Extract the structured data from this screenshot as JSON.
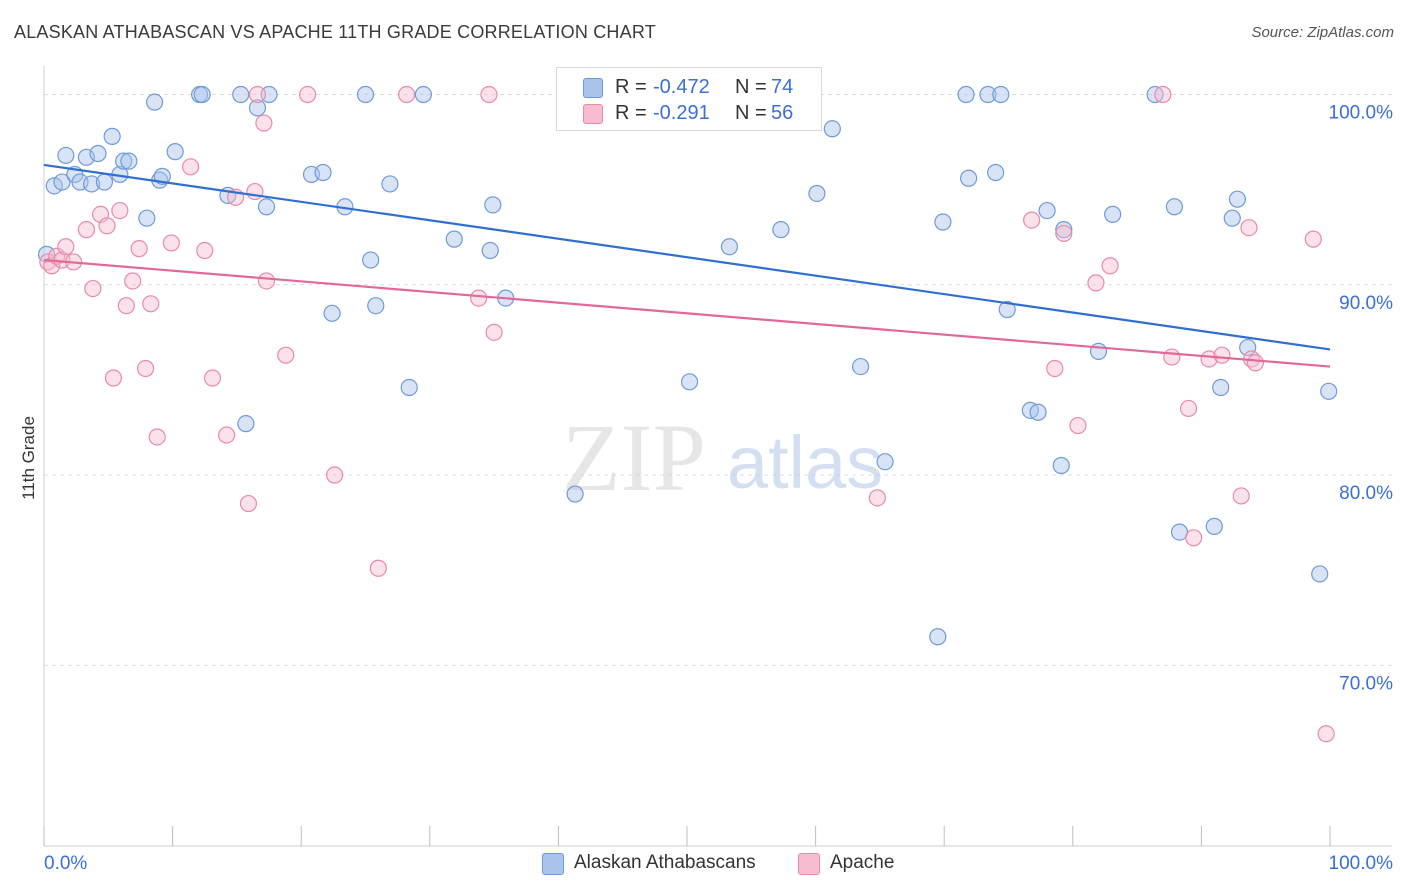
{
  "title": "ALASKAN ATHABASCAN VS APACHE 11TH GRADE CORRELATION CHART",
  "source": "Source: ZipAtlas.com",
  "watermark": {
    "zip": "ZIP",
    "atlas": "atlas"
  },
  "legend": {
    "r_label": "R =",
    "n_label": "N =",
    "series": [
      {
        "r": "-0.472",
        "n": "74"
      },
      {
        "r": "-0.291",
        "n": "56"
      }
    ]
  },
  "colors": {
    "blue_fill": "#a9c4ec",
    "blue_stroke": "#6f9ad8",
    "blue_line": "#2f6fd1",
    "pink_fill": "#f7bcd0",
    "pink_stroke": "#e88aa9",
    "pink_line": "#e0689a",
    "tick_label": "#3a6fd6",
    "grid": "#dcdcdc"
  },
  "chart_data": {
    "type": "scatter",
    "title": "ALASKAN ATHABASCAN VS APACHE 11TH GRADE CORRELATION CHART",
    "xlabel": "",
    "ylabel": "11th Grade",
    "xlim": [
      0,
      100
    ],
    "ylim": [
      60.5,
      101.5
    ],
    "x_tick_labels": [
      "0.0%",
      "100.0%"
    ],
    "y_ticks": [
      {
        "value": 100,
        "label": "100.0%"
      },
      {
        "value": 90,
        "label": "90.0%"
      },
      {
        "value": 80,
        "label": "80.0%"
      },
      {
        "value": 70,
        "label": "70.0%"
      }
    ],
    "grid": true,
    "legend_position": "top-center",
    "series": [
      {
        "name": "Alaskan Athabascans",
        "color": "blue",
        "trend": {
          "x": [
            0,
            100
          ],
          "y": [
            96.3,
            86.6
          ]
        },
        "points": [
          [
            0.2,
            91.6
          ],
          [
            0.8,
            95.2
          ],
          [
            1.4,
            95.4
          ],
          [
            1.7,
            96.8
          ],
          [
            2.4,
            95.8
          ],
          [
            2.8,
            95.4
          ],
          [
            3.3,
            96.7
          ],
          [
            3.7,
            95.3
          ],
          [
            4.2,
            96.9
          ],
          [
            4.7,
            95.4
          ],
          [
            5.3,
            97.8
          ],
          [
            5.9,
            95.8
          ],
          [
            6.2,
            96.5
          ],
          [
            6.6,
            96.5
          ],
          [
            8.0,
            93.5
          ],
          [
            8.6,
            99.6
          ],
          [
            9.0,
            95.5
          ],
          [
            9.2,
            95.7
          ],
          [
            10.2,
            97.0
          ],
          [
            12.1,
            100.0
          ],
          [
            12.3,
            100.0
          ],
          [
            14.3,
            94.7
          ],
          [
            15.3,
            100.0
          ],
          [
            15.7,
            82.7
          ],
          [
            16.6,
            99.3
          ],
          [
            17.3,
            94.1
          ],
          [
            17.5,
            100.0
          ],
          [
            20.8,
            95.8
          ],
          [
            21.7,
            95.9
          ],
          [
            22.4,
            88.5
          ],
          [
            23.4,
            94.1
          ],
          [
            25.0,
            100.0
          ],
          [
            25.4,
            91.3
          ],
          [
            25.8,
            88.9
          ],
          [
            26.9,
            95.3
          ],
          [
            28.4,
            84.6
          ],
          [
            29.5,
            100.0
          ],
          [
            31.9,
            92.4
          ],
          [
            34.7,
            91.8
          ],
          [
            34.9,
            94.2
          ],
          [
            35.9,
            89.3
          ],
          [
            41.3,
            79.0
          ],
          [
            50.2,
            84.9
          ],
          [
            53.3,
            92.0
          ],
          [
            57.3,
            92.9
          ],
          [
            60.1,
            94.8
          ],
          [
            61.3,
            98.2
          ],
          [
            63.5,
            85.7
          ],
          [
            65.4,
            80.7
          ],
          [
            69.5,
            71.5
          ],
          [
            69.9,
            93.3
          ],
          [
            71.7,
            100.0
          ],
          [
            71.9,
            95.6
          ],
          [
            73.4,
            100.0
          ],
          [
            74.4,
            100.0
          ],
          [
            74.0,
            95.9
          ],
          [
            74.9,
            88.7
          ],
          [
            76.7,
            83.4
          ],
          [
            77.3,
            83.3
          ],
          [
            78.0,
            93.9
          ],
          [
            79.1,
            80.5
          ],
          [
            79.3,
            92.9
          ],
          [
            82.0,
            86.5
          ],
          [
            83.1,
            93.7
          ],
          [
            86.4,
            100.0
          ],
          [
            87.9,
            94.1
          ],
          [
            88.3,
            77.0
          ],
          [
            91.0,
            77.3
          ],
          [
            91.5,
            84.6
          ],
          [
            92.4,
            93.5
          ],
          [
            92.8,
            94.5
          ],
          [
            93.6,
            86.7
          ],
          [
            99.2,
            74.8
          ],
          [
            99.9,
            84.4
          ]
        ]
      },
      {
        "name": "Apache",
        "color": "pink",
        "trend": {
          "x": [
            0,
            100
          ],
          "y": [
            91.3,
            85.7
          ]
        },
        "points": [
          [
            0.3,
            91.2
          ],
          [
            0.6,
            91.0
          ],
          [
            1.0,
            91.5
          ],
          [
            1.4,
            91.3
          ],
          [
            1.7,
            92.0
          ],
          [
            2.3,
            91.2
          ],
          [
            3.3,
            92.9
          ],
          [
            3.8,
            89.8
          ],
          [
            4.4,
            93.7
          ],
          [
            4.9,
            93.1
          ],
          [
            5.4,
            85.1
          ],
          [
            5.9,
            93.9
          ],
          [
            6.4,
            88.9
          ],
          [
            6.9,
            90.2
          ],
          [
            7.4,
            91.9
          ],
          [
            7.9,
            85.6
          ],
          [
            8.3,
            89.0
          ],
          [
            8.8,
            82.0
          ],
          [
            9.9,
            92.2
          ],
          [
            11.4,
            96.2
          ],
          [
            12.5,
            91.8
          ],
          [
            13.1,
            85.1
          ],
          [
            14.2,
            82.1
          ],
          [
            14.9,
            94.6
          ],
          [
            15.9,
            78.5
          ],
          [
            16.6,
            100.0
          ],
          [
            16.4,
            94.9
          ],
          [
            17.1,
            98.5
          ],
          [
            17.3,
            90.2
          ],
          [
            18.8,
            86.3
          ],
          [
            20.5,
            100.0
          ],
          [
            22.6,
            80.0
          ],
          [
            26.0,
            75.1
          ],
          [
            28.2,
            100.0
          ],
          [
            35.0,
            87.5
          ],
          [
            34.6,
            100.0
          ],
          [
            33.8,
            89.3
          ],
          [
            64.8,
            78.8
          ],
          [
            76.8,
            93.4
          ],
          [
            78.6,
            85.6
          ],
          [
            79.3,
            92.7
          ],
          [
            80.4,
            82.6
          ],
          [
            81.8,
            90.1
          ],
          [
            82.9,
            91.0
          ],
          [
            87.0,
            100.0
          ],
          [
            87.7,
            86.2
          ],
          [
            89.0,
            83.5
          ],
          [
            89.4,
            76.7
          ],
          [
            90.6,
            86.1
          ],
          [
            91.6,
            86.3
          ],
          [
            93.1,
            78.9
          ],
          [
            93.7,
            93.0
          ],
          [
            93.9,
            86.1
          ],
          [
            94.2,
            85.9
          ],
          [
            98.7,
            92.4
          ],
          [
            99.7,
            66.4
          ]
        ]
      }
    ]
  },
  "bottom_legend": [
    {
      "label": "Alaskan Athabascans"
    },
    {
      "label": "Apache"
    }
  ]
}
